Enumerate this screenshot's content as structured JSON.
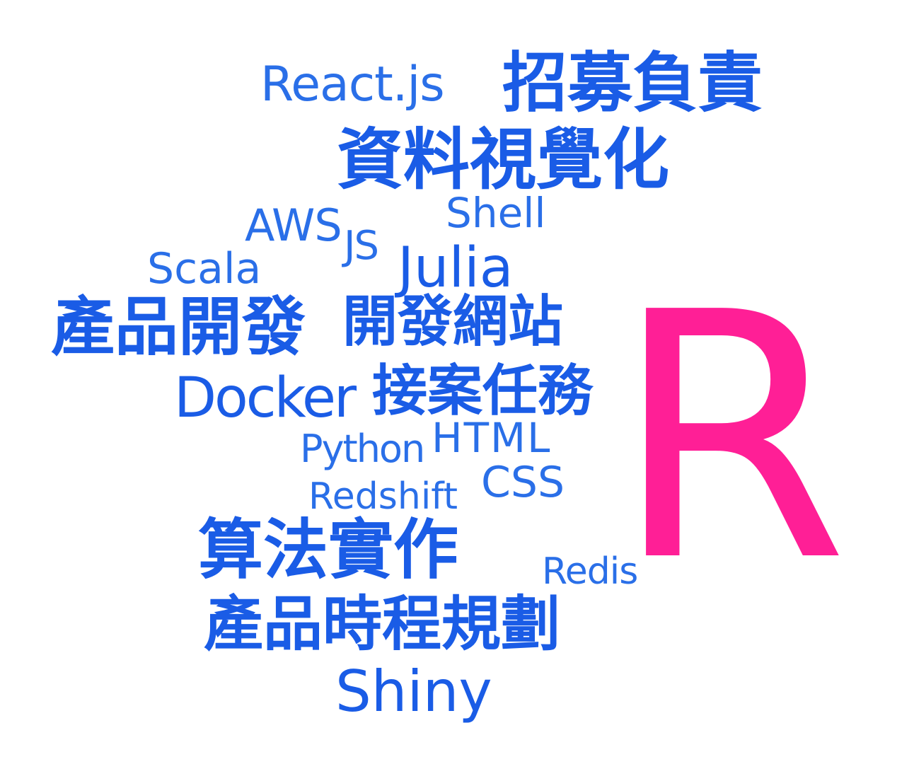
{
  "colors": {
    "primary_word": "#1a5ce6",
    "light_word": "#2a6fe8",
    "highlight_word": "#ff1f96",
    "background": "#ffffff"
  },
  "words": {
    "react": "React.js",
    "recruit": "招募負責",
    "dataviz": "資料視覺化",
    "shell": "Shell",
    "aws": "AWS",
    "js": "JS",
    "julia": "Julia",
    "scala": "Scala",
    "proddev": "產品開發",
    "webdev": "開發網站",
    "r": "R",
    "docker": "Docker",
    "freelance": "接案任務",
    "python": "Python",
    "html": "HTML",
    "css": "CSS",
    "redshift": "Redshift",
    "algo": "算法實作",
    "redis": "Redis",
    "roadmap": "產品時程規劃",
    "shiny": "Shiny"
  }
}
